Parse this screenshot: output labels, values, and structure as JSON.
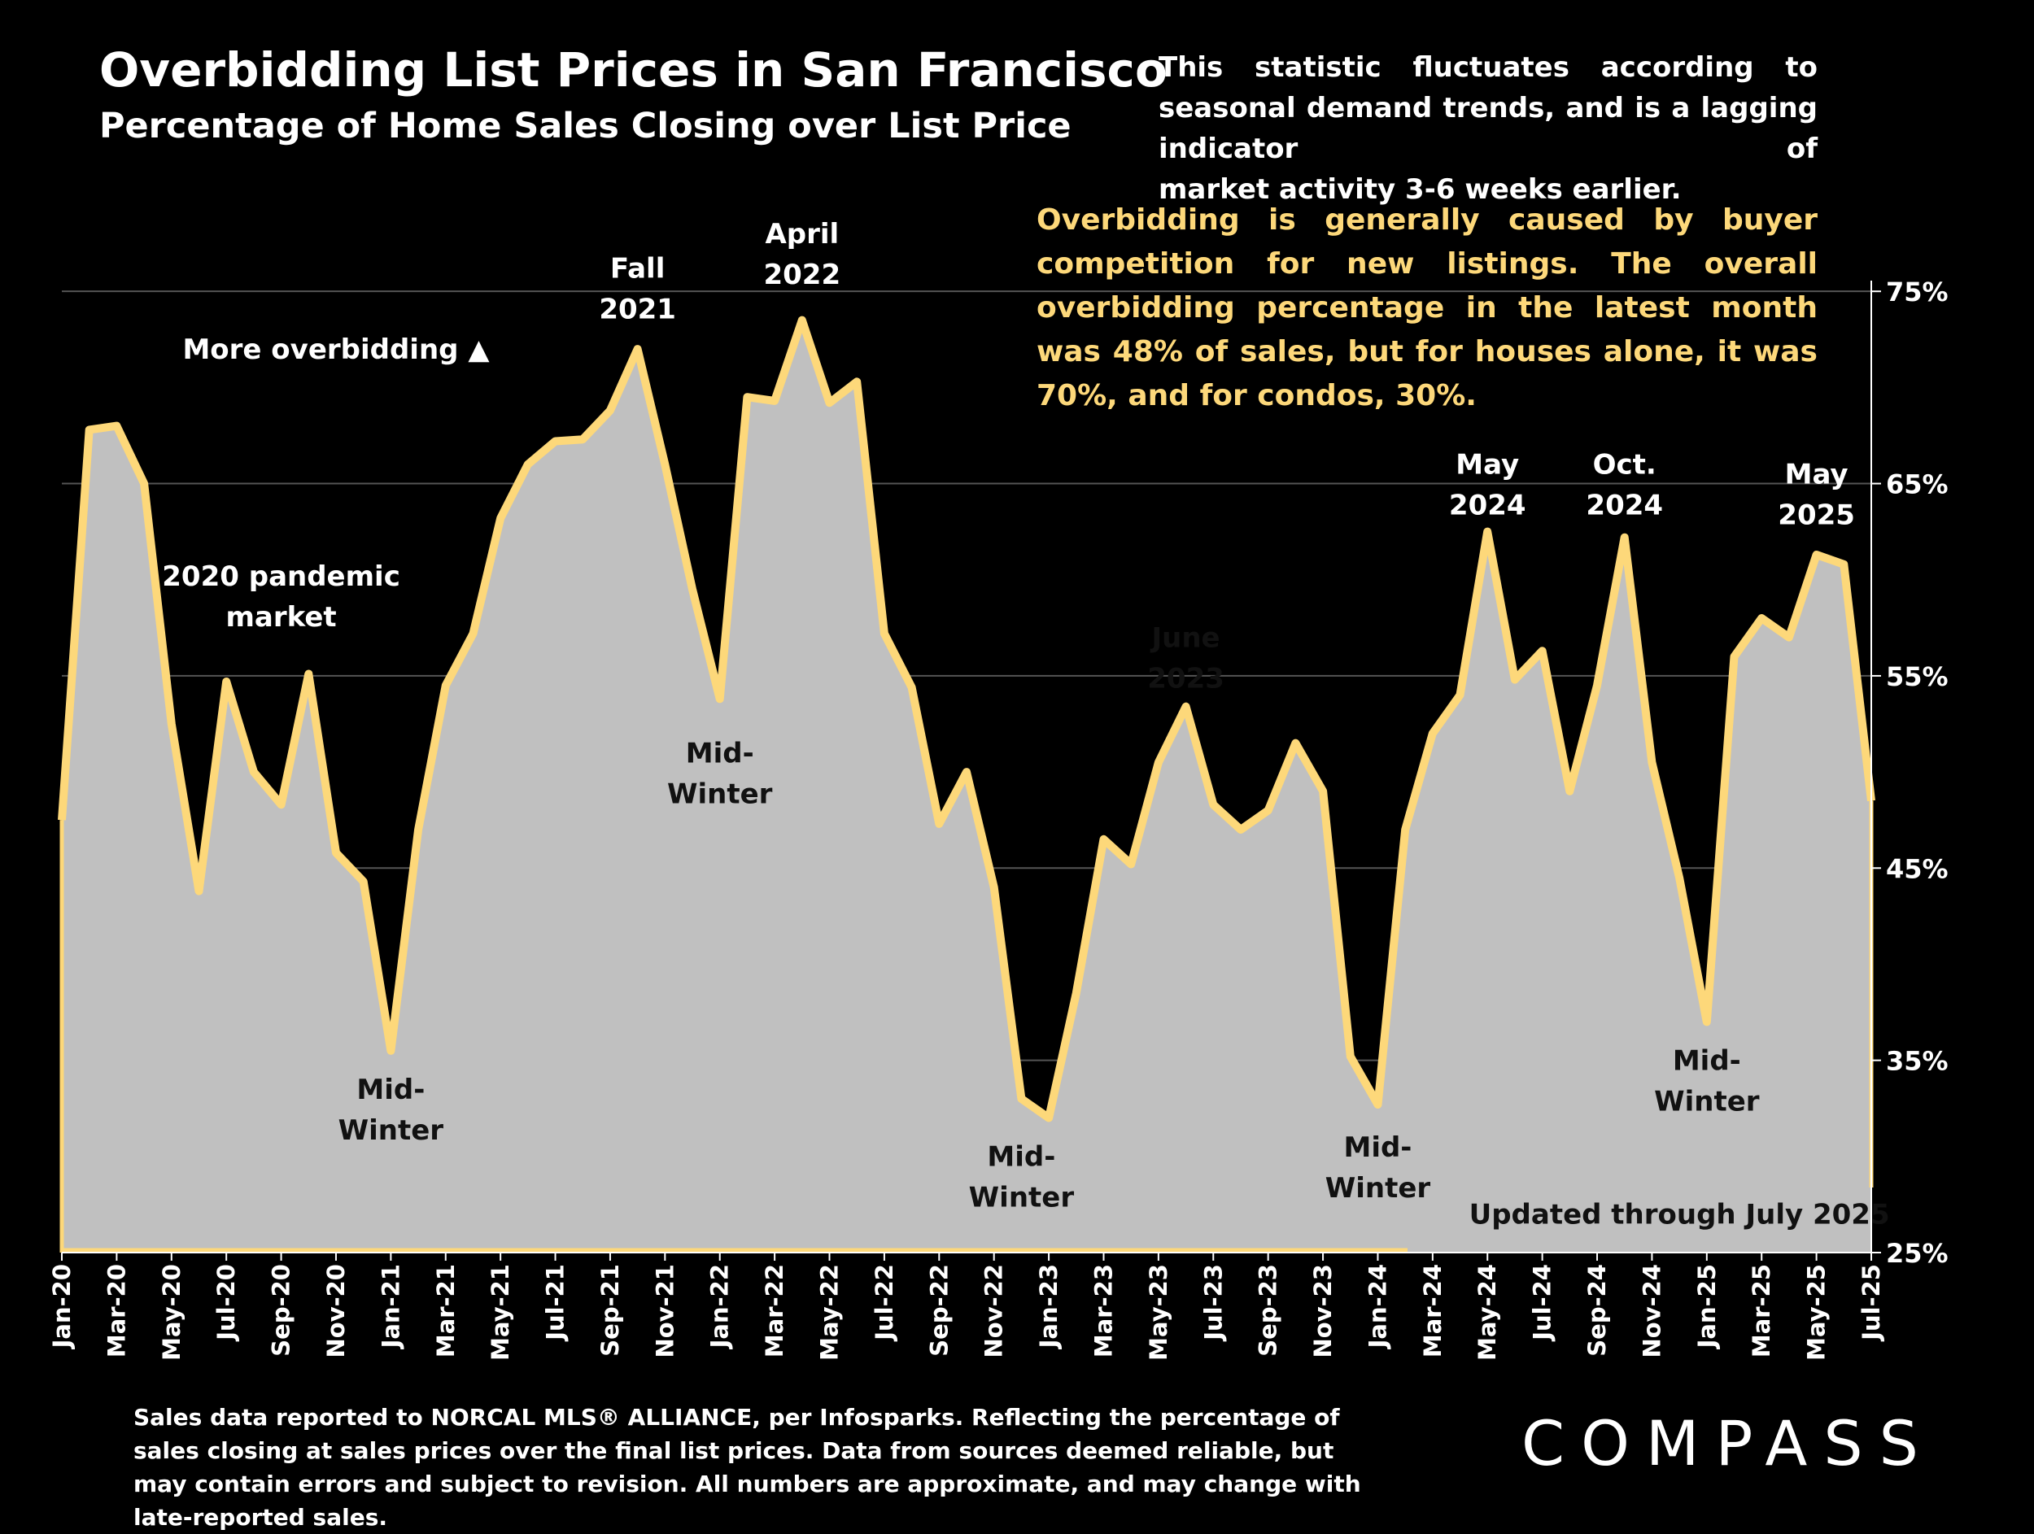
{
  "header": {
    "title": "Overbidding List Prices in San Francisco",
    "subtitle": "Percentage of Home Sales Closing over List Price"
  },
  "notes": {
    "seasonal_line1": "This statistic fluctuates according to seasonal demand trends, and is a lagging indicator of",
    "seasonal_line2": "market activity 3-6 weeks earlier.",
    "overbidding": "Overbidding is generally caused by buyer competition for new listings. The overall overbidding percentage in the latest month was 48% of sales, but for houses alone, it was 70%, and for condos, 30%."
  },
  "footnote": "Sales data reported to NORCAL MLS® ALLIANCE, per Infosparks. Reflecting the percentage of sales closing at sales prices over the final list prices. Data from sources deemed reliable, but may contain errors and subject to revision. All numbers are approximate, and may change with late-reported sales.",
  "logo": "COMPASS",
  "colors": {
    "line": "#fdd87a",
    "fill": "#c0c0c0",
    "background": "#000000"
  },
  "chart_data": {
    "type": "area",
    "title": "Overbidding List Prices in San Francisco",
    "subtitle": "Percentage of Home Sales Closing over List Price",
    "ylim": [
      25,
      80
    ],
    "y_unit": "%",
    "yticks": [
      25,
      35,
      45,
      55,
      65,
      75
    ],
    "ytick_labels": [
      "25%",
      "35%",
      "45%",
      "55%",
      "65%",
      "75%"
    ],
    "x_tick_labels": [
      "Jan-20",
      "Mar-20",
      "May-20",
      "Jul-20",
      "Sep-20",
      "Nov-20",
      "Jan-21",
      "Mar-21",
      "May-21",
      "Jul-21",
      "Sep-21",
      "Nov-21",
      "Jan-22",
      "Mar-22",
      "May-22",
      "Jul-22",
      "Sep-22",
      "Nov-22",
      "Jan-23",
      "Mar-23",
      "May-23",
      "Jul-23",
      "Sep-23",
      "Nov-23",
      "Jan-24",
      "Mar-24",
      "May-24",
      "Jul-24",
      "Sep-24",
      "Nov-24",
      "Jan-25",
      "Mar-25",
      "May-25",
      "Jul-25"
    ],
    "x": [
      "Jan-20",
      "Feb-20",
      "Mar-20",
      "Apr-20",
      "May-20",
      "Jun-20",
      "Jul-20",
      "Aug-20",
      "Sep-20",
      "Oct-20",
      "Nov-20",
      "Dec-20",
      "Jan-21",
      "Feb-21",
      "Mar-21",
      "Apr-21",
      "May-21",
      "Jun-21",
      "Jul-21",
      "Aug-21",
      "Sep-21",
      "Oct-21",
      "Nov-21",
      "Dec-21",
      "Jan-22",
      "Feb-22",
      "Mar-22",
      "Apr-22",
      "May-22",
      "Jun-22",
      "Jul-22",
      "Aug-22",
      "Sep-22",
      "Oct-22",
      "Nov-22",
      "Dec-22",
      "Jan-23",
      "Feb-23",
      "Mar-23",
      "Apr-23",
      "May-23",
      "Jun-23",
      "Jul-23",
      "Aug-23",
      "Sep-23",
      "Oct-23",
      "Nov-23",
      "Dec-23",
      "Jan-24",
      "Feb-24",
      "Mar-24",
      "Apr-24",
      "May-24",
      "Jun-24",
      "Jul-24",
      "Aug-24",
      "Sep-24",
      "Oct-24",
      "Nov-24",
      "Dec-24",
      "Jan-25",
      "Feb-25",
      "Mar-25",
      "Apr-25",
      "May-25",
      "Jun-25",
      "Jul-25"
    ],
    "values": [
      47.5,
      67.8,
      68.0,
      65.0,
      52.5,
      43.8,
      54.7,
      50.0,
      48.3,
      55.1,
      45.8,
      44.3,
      35.5,
      47.0,
      54.5,
      57.2,
      63.2,
      66.0,
      67.2,
      67.3,
      68.8,
      72.0,
      66.0,
      59.5,
      53.8,
      69.5,
      69.3,
      73.5,
      69.2,
      70.3,
      57.2,
      54.4,
      47.3,
      50.0,
      44.0,
      33.0,
      32.0,
      38.5,
      46.5,
      45.2,
      50.5,
      53.4,
      48.3,
      47.0,
      48.0,
      51.5,
      49.0,
      35.2,
      32.7,
      47.0,
      52.0,
      54.0,
      62.5,
      54.8,
      56.3,
      49.0,
      54.5,
      62.2,
      50.5,
      44.5,
      37.0,
      56.0,
      58.0,
      57.0,
      61.3,
      60.8,
      48.5
    ],
    "annotations": [
      {
        "text_lines": [
          "More overbidding ▲"
        ],
        "x": "Nov-20",
        "y": 71.5,
        "color": "white"
      },
      {
        "text_lines": [
          "2020 pandemic",
          "market"
        ],
        "x": "Sep-20",
        "y": 59.7,
        "color": "white"
      },
      {
        "text_lines": [
          "Fall",
          "2021"
        ],
        "x": "Oct-21",
        "y": 75.7,
        "color": "white"
      },
      {
        "text_lines": [
          "April",
          "2022"
        ],
        "x": "Apr-22",
        "y": 77.5,
        "color": "white"
      },
      {
        "text_lines": [
          "Mid-",
          "Winter"
        ],
        "x": "Jan-22",
        "y": 50.5,
        "color": "dark"
      },
      {
        "text_lines": [
          "Mid-",
          "Winter"
        ],
        "x": "Jan-21",
        "y": 33.0,
        "color": "dark"
      },
      {
        "text_lines": [
          "June",
          "2023"
        ],
        "x": "Jun-23",
        "y": 56.5,
        "color": "dark"
      },
      {
        "text_lines": [
          "Mid-",
          "Winter"
        ],
        "x": "Dec-22",
        "y": 29.5,
        "color": "dark"
      },
      {
        "text_lines": [
          "Mid-",
          "Winter"
        ],
        "x": "Jan-24",
        "y": 30.0,
        "color": "dark"
      },
      {
        "text_lines": [
          "May",
          "2024"
        ],
        "x": "May-24",
        "y": 65.5,
        "color": "white"
      },
      {
        "text_lines": [
          "Oct.",
          "2024"
        ],
        "x": "Oct-24",
        "y": 65.5,
        "color": "white"
      },
      {
        "text_lines": [
          "May",
          "2025"
        ],
        "x": "May-25",
        "y": 65.0,
        "color": "white"
      },
      {
        "text_lines": [
          "Mid-",
          "Winter"
        ],
        "x": "Jan-25",
        "y": 34.5,
        "color": "dark"
      },
      {
        "text_lines": [
          "Updated through July 2025"
        ],
        "x": "Dec-24",
        "y": 26.5,
        "color": "dark"
      }
    ],
    "grid": true,
    "legend": "none"
  }
}
